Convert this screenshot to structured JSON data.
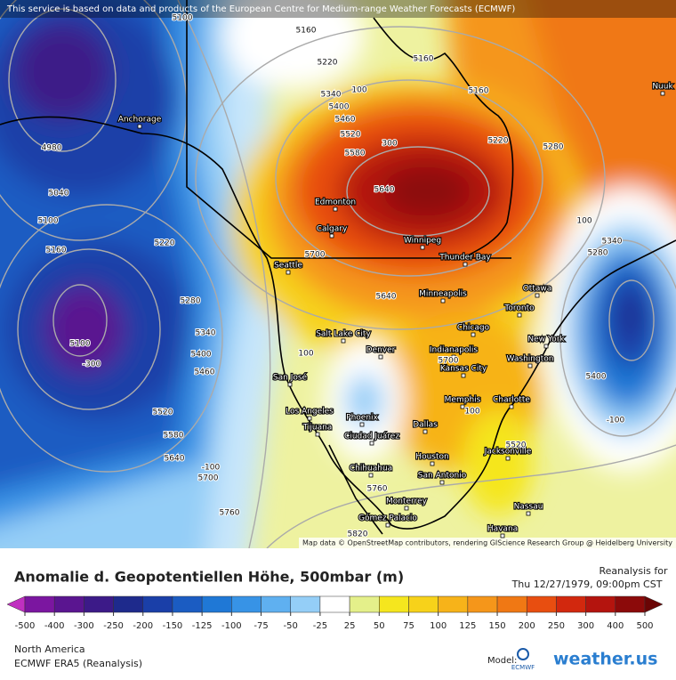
{
  "map": {
    "notice": "This service is based on data and products of the European Centre for Medium-range Weather Forecasts (ECMWF)",
    "attribution": "Map data © OpenStreetMap contributors, rendering GIScience Research Group @ Heidelberg University",
    "cities": [
      "Anchorage",
      "Edmonton",
      "Calgary",
      "Winnipeg",
      "Thunder Bay",
      "Seattle",
      "Minneapolis",
      "Ottawa",
      "Toronto",
      "Salt Lake City",
      "Denver",
      "Chicago",
      "Indianapolis",
      "New York",
      "Washington",
      "Kansas City",
      "San José",
      "Memphis",
      "Charlotte",
      "Los Angeles",
      "Phoenix",
      "Dallas",
      "Tijuana",
      "Ciudad Juárez",
      "Jacksonville",
      "Houston",
      "San Antonio",
      "Chihuahua",
      "Monterrey",
      "Nassau",
      "Gómez Palacio",
      "Havana",
      "Nuuk"
    ],
    "contour_labels": [
      "5100",
      "5160",
      "5220",
      "5160",
      "5160",
      "5340",
      "100",
      "5400",
      "5460",
      "5520",
      "300",
      "5580",
      "5640",
      "5220",
      "5280",
      "100",
      "5340",
      "5280",
      "5700",
      "5640",
      "100",
      "5700",
      "100",
      "5520",
      "-100",
      "5400",
      "5760",
      "5820",
      "5760",
      "5700",
      "-100",
      "5640",
      "5580",
      "5520",
      "5460",
      "5400",
      "5340",
      "5280",
      "5220",
      "5160",
      "5100",
      "5040",
      "4980",
      "5100",
      "-300"
    ]
  },
  "colorbar": {
    "ticks": [
      -500,
      -400,
      -300,
      -250,
      -200,
      -150,
      -125,
      -100,
      -75,
      -50,
      -25,
      25,
      50,
      75,
      100,
      125,
      150,
      200,
      250,
      300,
      400,
      500
    ],
    "colors": [
      "#c030c0",
      "#7b16a0",
      "#5a1590",
      "#3c1a88",
      "#1e2a8c",
      "#1a3fa8",
      "#1b5cc2",
      "#1f78d6",
      "#3793e6",
      "#5fb0f0",
      "#94cef7",
      "#ffffff",
      "#e4f08a",
      "#f5e61e",
      "#f7d21a",
      "#f7b319",
      "#f5961a",
      "#f07814",
      "#e84e10",
      "#d2280e",
      "#b4140e",
      "#8c0a0a",
      "#6a0505"
    ]
  },
  "footer": {
    "title": "Anomalie d. Geopotentiellen Höhe, 500mbar (m)",
    "run_label": "Reanalysis for",
    "run_time": "Thu 12/27/1979, 09:00pm CST",
    "region": "North America",
    "model_name": "ECMWF ERA5 (Reanalysis)",
    "model_label": "Model:",
    "ecmwf": "ECMWF",
    "brand": "weather.us"
  }
}
